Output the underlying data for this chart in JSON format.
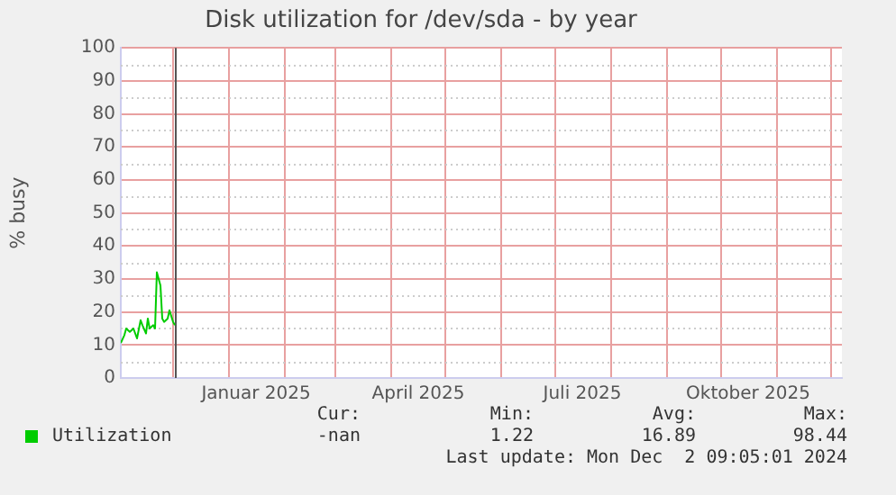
{
  "chart_data": {
    "type": "line",
    "title": "Disk utilization for /dev/sda - by year",
    "ylabel": "% busy",
    "x": [
      "2024-11-02",
      "2024-11-04",
      "2024-11-05",
      "2024-11-07",
      "2024-11-09",
      "2024-11-11",
      "2024-11-13",
      "2024-11-14",
      "2024-11-16",
      "2024-11-17",
      "2024-11-18",
      "2024-11-20",
      "2024-11-21",
      "2024-11-22",
      "2024-11-24",
      "2024-11-25",
      "2024-11-26",
      "2024-11-28",
      "2024-11-29",
      "2024-12-01",
      "2024-12-02"
    ],
    "series": [
      {
        "name": "Utilization",
        "color": "#00cc00",
        "values": [
          10.6,
          13,
          15,
          14,
          15,
          12,
          17.5,
          16,
          13.5,
          18,
          15,
          16,
          15,
          32,
          28,
          18,
          17,
          18,
          20.5,
          17,
          16
        ]
      }
    ],
    "xlim": [
      "2024-11-02",
      "2025-12-07"
    ],
    "xticks": [
      {
        "value": "2024-12-01",
        "label": null
      },
      {
        "value": "2025-01-01",
        "label": null
      },
      {
        "value": "2025-01-16",
        "label": "Januar 2025"
      },
      {
        "value": "2025-02-01",
        "label": null
      },
      {
        "value": "2025-03-01",
        "label": null
      },
      {
        "value": "2025-04-01",
        "label": null
      },
      {
        "value": "2025-04-16",
        "label": "April 2025"
      },
      {
        "value": "2025-05-01",
        "label": null
      },
      {
        "value": "2025-06-01",
        "label": null
      },
      {
        "value": "2025-07-01",
        "label": null
      },
      {
        "value": "2025-07-16",
        "label": "Juli 2025"
      },
      {
        "value": "2025-08-01",
        "label": null
      },
      {
        "value": "2025-09-01",
        "label": null
      },
      {
        "value": "2025-10-01",
        "label": null
      },
      {
        "value": "2025-10-16",
        "label": "Oktober 2025"
      },
      {
        "value": "2025-11-01",
        "label": null
      },
      {
        "value": "2025-12-01",
        "label": null
      }
    ],
    "ylim": [
      0,
      100
    ],
    "yticks": [
      0,
      10,
      20,
      30,
      40,
      50,
      60,
      70,
      80,
      90,
      100
    ],
    "grid": true,
    "legend": "bottom",
    "marker": "none",
    "line_style": "solid",
    "ref_lines": [
      {
        "axis": "x",
        "value": "2024-12-02",
        "color": "#555555"
      }
    ],
    "annotations": [
      "Cur:",
      "Min:",
      "Avg:",
      "Max:",
      "-nan",
      "1.22",
      "16.89",
      "98.44",
      "Last update: Mon Dec  2 09:05:01 2024"
    ]
  }
}
